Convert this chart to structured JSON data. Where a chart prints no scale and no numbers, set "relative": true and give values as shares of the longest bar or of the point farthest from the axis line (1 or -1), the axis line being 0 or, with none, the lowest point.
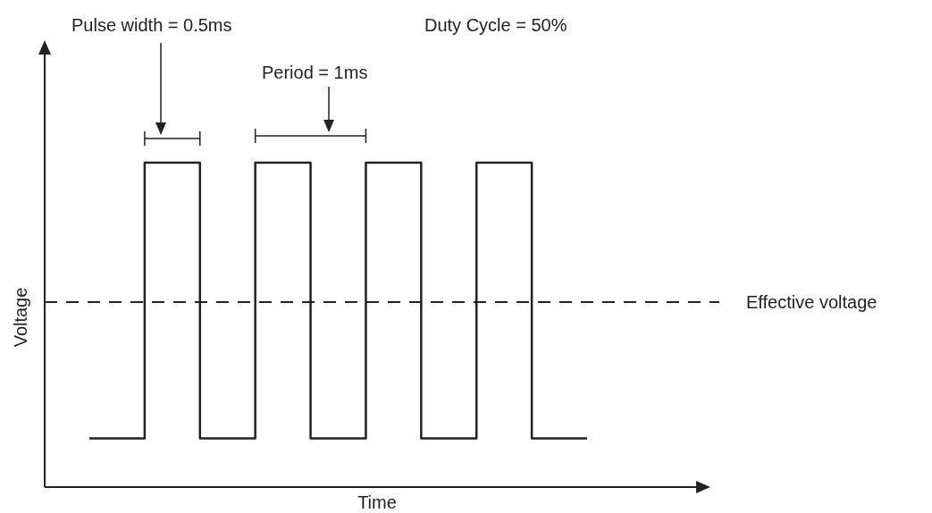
{
  "chart_data": {
    "type": "step",
    "relative": true,
    "xlabel": "Time",
    "ylabel": "Voltage",
    "categories": [
      null,
      null,
      null,
      null,
      null,
      null,
      null,
      null,
      null,
      null
    ],
    "series": [
      {
        "color": "#222222",
        "values": [
          0.15,
          1,
          0.15,
          1,
          0.15,
          1,
          0.15,
          1,
          0.15,
          0.15
        ]
      }
    ],
    "ref_lines": [
      {
        "axis": "y",
        "value": 0.57,
        "label": "Effective voltage",
        "color": "#222222",
        "line_style": "dashed"
      }
    ],
    "annotations": [
      "Pulse width = 0.5ms",
      "Duty Cycle = 50%",
      "Period = 1ms"
    ],
    "grid": false,
    "tick_labels": false,
    "marker": "none",
    "line_style": "solid"
  }
}
